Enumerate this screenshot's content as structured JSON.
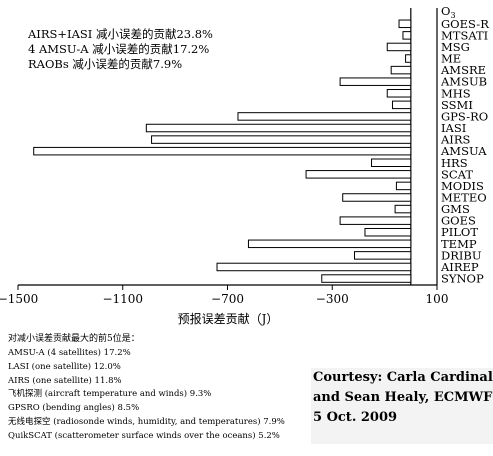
{
  "chart_data": {
    "type": "bar",
    "orientation": "horizontal",
    "categories": [
      "GOES-R",
      "MTSATI",
      "MSG",
      "ME",
      "AMSRE",
      "AMSUB",
      "MHS",
      "SSMI",
      "GPS-RO",
      "IASI",
      "AIRS",
      "AMSUA",
      "HRS",
      "SCAT",
      "MODIS",
      "METEO",
      "GMS",
      "GOES",
      "PILOT",
      "TEMP",
      "DRIBU",
      "AIREP",
      "SYNOP"
    ],
    "top_label": "O3",
    "values": [
      -45,
      -30,
      -90,
      -20,
      -75,
      -270,
      -90,
      -70,
      -660,
      -1010,
      -990,
      -1440,
      -150,
      -400,
      -55,
      -260,
      -60,
      -270,
      -175,
      -620,
      -215,
      -740,
      -340
    ],
    "xlim": [
      -1500,
      100
    ],
    "xticks": [
      "-1500",
      "-1100",
      "-700",
      "-300",
      "100"
    ],
    "xlabel": "预报误差贡献（J）",
    "annotations": [
      "AIRS+IASI 减小误差的贡献23.8%",
      "4 AMSU-A 减小误差的贡献17.2%",
      "RAOBs 减小误差的贡献7.9%"
    ]
  },
  "notes": {
    "heading": "对减小误差贡献最大的前5位是：",
    "items": [
      "AMSU-A (4 satellites) 17.2%",
      "LASI (one satellite) 12.0%",
      "AIRS (one satellite) 11.8%",
      "飞机探测 (aircraft temperature and winds) 9.3%",
      "GPSRO (bending angles) 8.5%",
      "无线电探空 (radiosonde winds, humidity, and temperatures) 7.9%",
      "QuikSCAT (scatterometer surface winds over the oceans) 5.2%"
    ]
  },
  "credit": {
    "lines": [
      "Courtesy: Carla Cardinali",
      "and Sean Healy, ECMWF",
      "5 Oct. 2009"
    ]
  }
}
